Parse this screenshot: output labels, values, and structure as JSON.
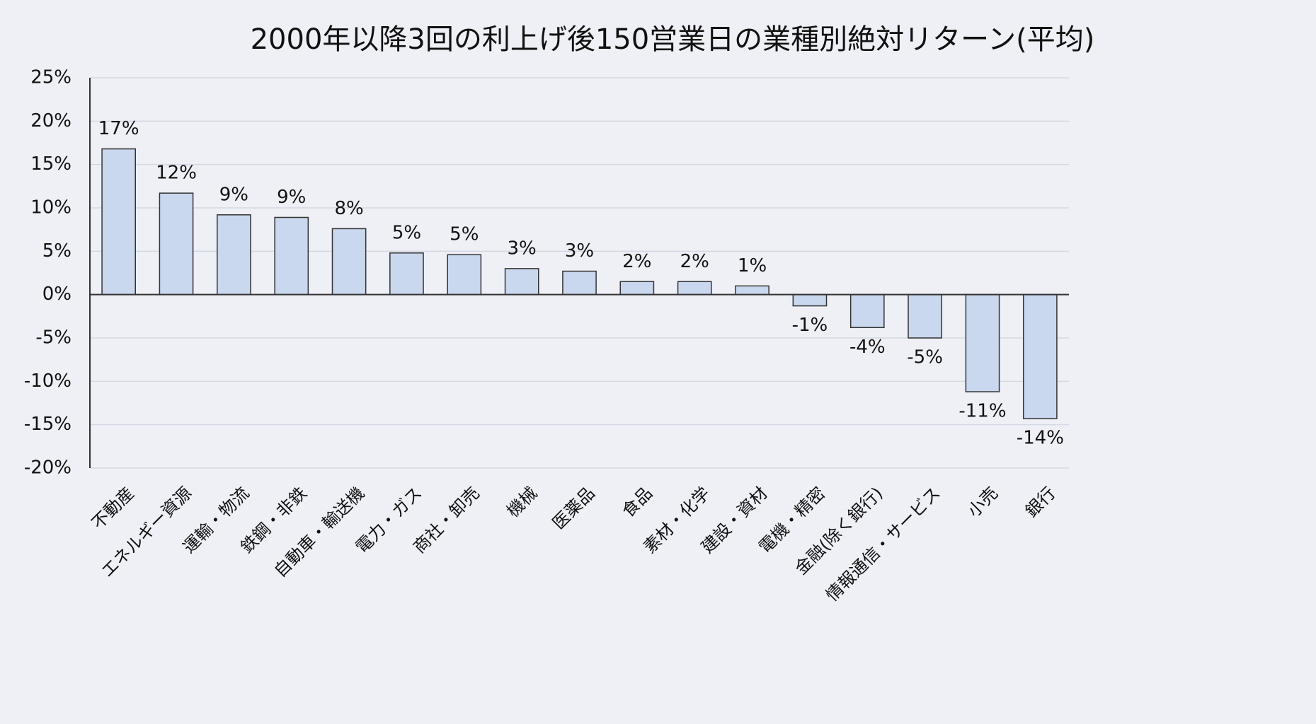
{
  "chart_data": {
    "type": "bar",
    "title": "2000年以降3回の利上げ後150営業日の業種別絶対リターン(平均)",
    "categories": [
      "不動産",
      "エネルギー資源",
      "運輸・物流",
      "鉄鋼・非鉄",
      "自動車・輸送機",
      "電力・ガス",
      "商社・卸売",
      "機械",
      "医薬品",
      "食品",
      "素材・化学",
      "建設・資材",
      "電機・精密",
      "金融(除く銀行)",
      "情報通信・サービス",
      "小売",
      "銀行"
    ],
    "values": [
      16.8,
      11.7,
      9.2,
      8.9,
      7.6,
      4.8,
      4.6,
      3.0,
      2.7,
      1.5,
      1.5,
      1.0,
      -1.3,
      -3.8,
      -5.0,
      -11.2,
      -14.3
    ],
    "value_labels": [
      "17%",
      "12%",
      "9%",
      "9%",
      "8%",
      "5%",
      "5%",
      "3%",
      "3%",
      "2%",
      "2%",
      "1%",
      "-1%",
      "-4%",
      "-5%",
      "-11%",
      "-14%"
    ],
    "color": "#c9d8ee",
    "ylim": [
      -20,
      25
    ],
    "yticks": [
      {
        "value": -20,
        "label": "-20%"
      },
      {
        "value": -15,
        "label": "-15%"
      },
      {
        "value": -10,
        "label": "-10%"
      },
      {
        "value": -5,
        "label": "-5%"
      },
      {
        "value": 0,
        "label": "0%"
      },
      {
        "value": 5,
        "label": "5%"
      },
      {
        "value": 10,
        "label": "10%"
      },
      {
        "value": 15,
        "label": "15%"
      },
      {
        "value": 20,
        "label": "20%"
      },
      {
        "value": 25,
        "label": "25%"
      }
    ],
    "grid": true
  }
}
